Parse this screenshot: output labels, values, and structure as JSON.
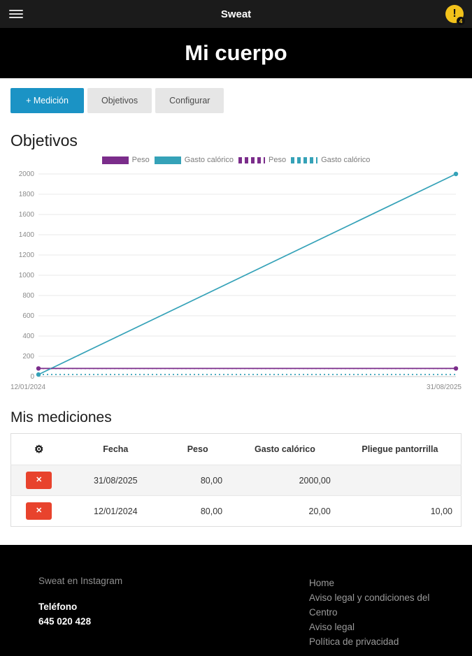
{
  "topbar": {
    "app_title": "Sweat",
    "notification_icon": "!",
    "notification_count": "4"
  },
  "page": {
    "title": "Mi cuerpo"
  },
  "toolbar": {
    "medicion_label": "+ Medición",
    "objetivos_label": "Objetivos",
    "configurar_label": "Configurar"
  },
  "sections": {
    "objetivos_heading": "Objetivos",
    "mediciones_heading": "Mis mediciones"
  },
  "chart_data": {
    "type": "line",
    "x_labels": [
      "12/01/2024",
      "31/08/2025"
    ],
    "ylim": [
      0,
      2000
    ],
    "y_ticks": [
      0,
      200,
      400,
      600,
      800,
      1000,
      1200,
      1400,
      1600,
      1800,
      2000
    ],
    "grid": true,
    "legend_position": "top",
    "series": [
      {
        "name": "Peso",
        "color": "#7b2d8b",
        "dash": false,
        "markers": true,
        "values": [
          80,
          80
        ]
      },
      {
        "name": "Gasto calórico",
        "color": "#35a2b8",
        "dash": false,
        "markers": true,
        "values": [
          20,
          2000
        ]
      },
      {
        "name": "Peso",
        "color": "#7b2d8b",
        "dash": true,
        "markers": false,
        "values": [
          80,
          80
        ]
      },
      {
        "name": "Gasto calórico",
        "color": "#35a2b8",
        "dash": true,
        "markers": false,
        "values": [
          20,
          20
        ]
      }
    ]
  },
  "table": {
    "headers": [
      "Fecha",
      "Peso",
      "Gasto calórico",
      "Pliegue pantorrilla"
    ],
    "delete_label": "✕",
    "rows": [
      {
        "fecha": "31/08/2025",
        "peso": "80,00",
        "gasto": "2000,00",
        "pliegue": ""
      },
      {
        "fecha": "12/01/2024",
        "peso": "80,00",
        "gasto": "20,00",
        "pliegue": "10,00"
      }
    ]
  },
  "footer": {
    "instagram": "Sweat en Instagram",
    "telefono_label": "Teléfono",
    "telefono": "645 020 428",
    "links": [
      "Home",
      "Aviso legal y condiciones del Centro",
      "Aviso legal",
      "Política de privacidad"
    ]
  },
  "colors": {
    "accent_blue": "#1b93c5",
    "purple": "#7b2d8b",
    "teal": "#35a2b8",
    "delete_red": "#e8432d",
    "notif_yellow": "#f2c21b"
  }
}
